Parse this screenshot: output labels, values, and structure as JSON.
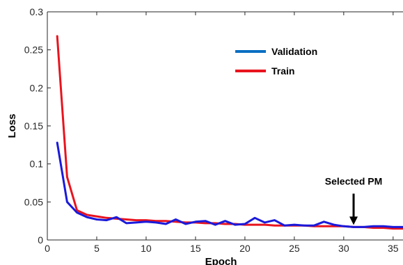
{
  "chart_data": {
    "type": "line",
    "xlabel": "Epoch",
    "ylabel": "Loss",
    "xlim": [
      0,
      36
    ],
    "ylim": [
      0,
      0.3
    ],
    "x_ticks": [
      "0",
      "5",
      "10",
      "15",
      "20",
      "25",
      "30",
      "35"
    ],
    "y_ticks": [
      "0",
      "0.05",
      "0.1",
      "0.15",
      "0.2",
      "0.25",
      "0.3"
    ],
    "grid": false,
    "legend_position": "top-right",
    "series": [
      {
        "name": "Validation",
        "color": "#1a1adb",
        "x": [
          1,
          2,
          3,
          4,
          5,
          6,
          7,
          8,
          9,
          10,
          11,
          12,
          13,
          14,
          15,
          16,
          17,
          18,
          19,
          20,
          21,
          22,
          23,
          24,
          25,
          26,
          27,
          28,
          29,
          30,
          31,
          32,
          33,
          34,
          35,
          36
        ],
        "y": [
          0.128,
          0.05,
          0.036,
          0.03,
          0.027,
          0.026,
          0.03,
          0.022,
          0.023,
          0.024,
          0.023,
          0.021,
          0.027,
          0.021,
          0.024,
          0.025,
          0.02,
          0.025,
          0.02,
          0.021,
          0.029,
          0.023,
          0.026,
          0.019,
          0.02,
          0.019,
          0.019,
          0.024,
          0.02,
          0.018,
          0.017,
          0.017,
          0.018,
          0.018,
          0.017,
          0.017
        ]
      },
      {
        "name": "Train",
        "color": "#e8141e",
        "x": [
          1,
          2,
          3,
          4,
          5,
          6,
          7,
          8,
          9,
          10,
          11,
          12,
          13,
          14,
          15,
          16,
          17,
          18,
          19,
          20,
          21,
          22,
          23,
          24,
          25,
          26,
          27,
          28,
          29,
          30,
          31,
          32,
          33,
          34,
          35,
          36
        ],
        "y": [
          0.268,
          0.083,
          0.039,
          0.033,
          0.031,
          0.029,
          0.028,
          0.027,
          0.026,
          0.026,
          0.025,
          0.025,
          0.024,
          0.023,
          0.023,
          0.022,
          0.022,
          0.021,
          0.021,
          0.02,
          0.02,
          0.02,
          0.019,
          0.019,
          0.019,
          0.019,
          0.018,
          0.018,
          0.018,
          0.018,
          0.017,
          0.017,
          0.016,
          0.016,
          0.015,
          0.015
        ]
      }
    ],
    "legend_swatch_colors": [
      "#0a6fc2",
      "#e8141e"
    ],
    "annotations": [
      {
        "text": "Selected PM",
        "x": 31,
        "y": 0.017
      }
    ]
  }
}
